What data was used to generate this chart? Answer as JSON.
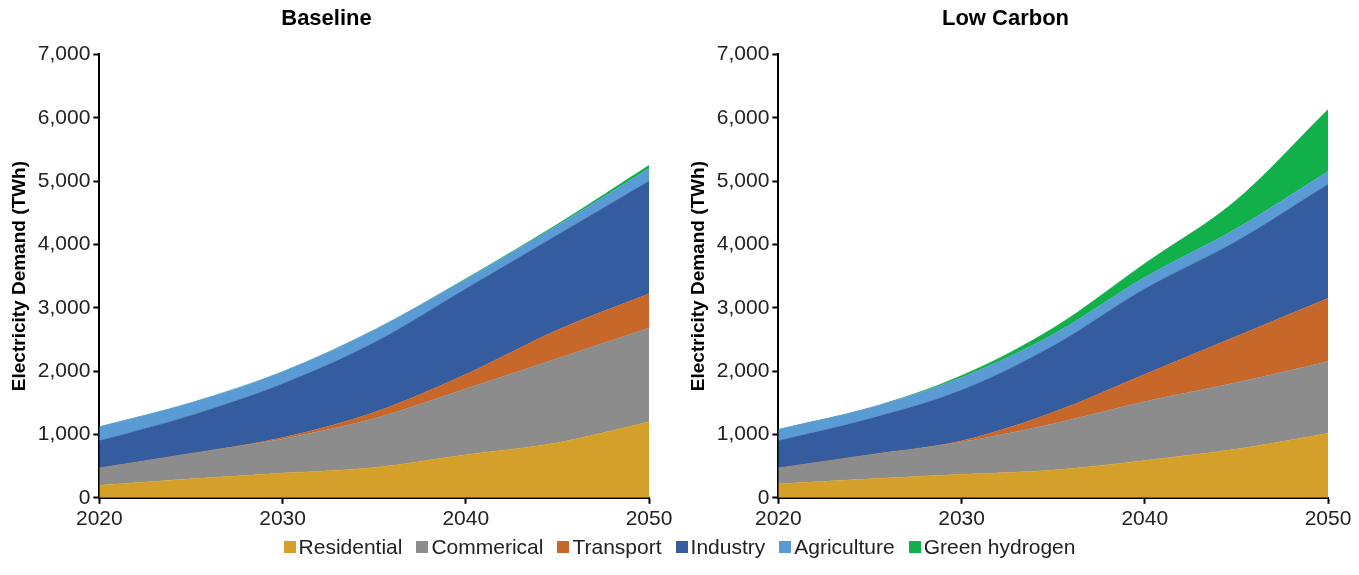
{
  "chart_data": [
    {
      "type": "area",
      "title": "Baseline",
      "ylabel": "Electricity Demand (TWh)",
      "stacked": true,
      "x": [
        2020,
        2025,
        2030,
        2035,
        2040,
        2045,
        2050
      ],
      "xlim": [
        2020,
        2050
      ],
      "xticks": [
        2020,
        2030,
        2040,
        2050
      ],
      "ylim": [
        0,
        7000
      ],
      "yticks": [
        {
          "value": 0,
          "label": "0"
        },
        {
          "value": 1000,
          "label": "1,000"
        },
        {
          "value": 2000,
          "label": "2,000"
        },
        {
          "value": 3000,
          "label": "3,000"
        },
        {
          "value": 4000,
          "label": "4,000"
        },
        {
          "value": 5000,
          "label": "5,000"
        },
        {
          "value": 6000,
          "label": "6,000"
        },
        {
          "value": 7000,
          "label": "7,000"
        }
      ],
      "grid": false,
      "legend": "bottom",
      "series": [
        {
          "name": "Residential",
          "color": "#d4a02a",
          "values": [
            200,
            300,
            390,
            480,
            680,
            870,
            1200
          ]
        },
        {
          "name": "Commerical",
          "color": "#8c8c8c",
          "values": [
            270,
            400,
            540,
            770,
            1040,
            1330,
            1480
          ]
        },
        {
          "name": "Transport",
          "color": "#c7672a",
          "values": [
            0,
            0,
            20,
            100,
            230,
            450,
            540
          ]
        },
        {
          "name": "Industry",
          "color": "#365ca0",
          "values": [
            430,
            600,
            850,
            1100,
            1350,
            1500,
            1780
          ]
        },
        {
          "name": "Agriculture",
          "color": "#5b9bd5",
          "values": [
            220,
            200,
            190,
            200,
            150,
            150,
            200
          ]
        },
        {
          "name": "Green hydrogen",
          "color": "#12b04a",
          "values": [
            0,
            0,
            0,
            0,
            10,
            20,
            50
          ]
        }
      ]
    },
    {
      "type": "area",
      "title": "Low Carbon",
      "ylabel": "Electricity Demand (TWh)",
      "stacked": true,
      "x": [
        2020,
        2025,
        2030,
        2035,
        2040,
        2045,
        2050
      ],
      "xlim": [
        2020,
        2050
      ],
      "xticks": [
        2020,
        2030,
        2040,
        2050
      ],
      "ylim": [
        0,
        7000
      ],
      "yticks": [
        {
          "value": 0,
          "label": "0"
        },
        {
          "value": 1000,
          "label": "1,000"
        },
        {
          "value": 2000,
          "label": "2,000"
        },
        {
          "value": 3000,
          "label": "3,000"
        },
        {
          "value": 4000,
          "label": "4,000"
        },
        {
          "value": 5000,
          "label": "5,000"
        },
        {
          "value": 6000,
          "label": "6,000"
        },
        {
          "value": 7000,
          "label": "7,000"
        }
      ],
      "grid": false,
      "series": [
        {
          "color": "#d4a02a",
          "values": [
            220,
            300,
            370,
            440,
            590,
            770,
            1020
          ]
        },
        {
          "color": "#8c8c8c",
          "values": [
            250,
            380,
            510,
            730,
            930,
            1050,
            1130
          ]
        },
        {
          "color": "#c7672a",
          "values": [
            0,
            0,
            20,
            180,
            430,
            730,
            1000
          ]
        },
        {
          "color": "#365ca0",
          "values": [
            430,
            570,
            800,
            1050,
            1350,
            1500,
            1800
          ]
        },
        {
          "color": "#5b9bd5",
          "values": [
            180,
            170,
            200,
            180,
            180,
            200,
            200
          ]
        },
        {
          "color": "#12b04a",
          "values": [
            0,
            0,
            30,
            100,
            220,
            450,
            980
          ]
        }
      ]
    }
  ]
}
